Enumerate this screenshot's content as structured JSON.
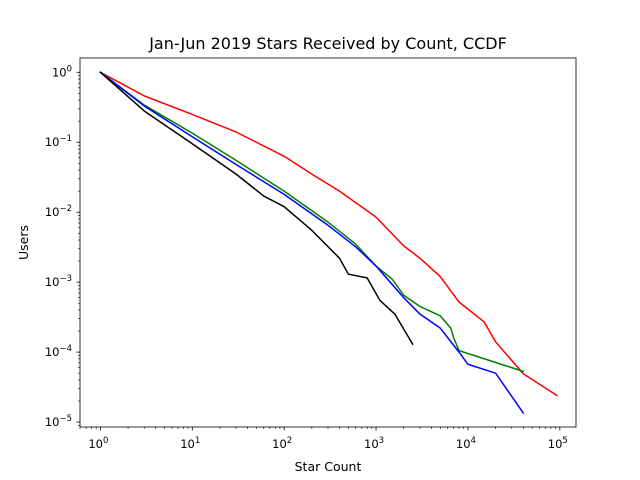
{
  "chart_data": {
    "type": "line",
    "title": "Jan-Jun 2019 Stars Received by Count, CCDF",
    "xlabel": "Star Count",
    "ylabel": "Users",
    "xscale": "log",
    "yscale": "log",
    "xlim": [
      0.6,
      150000
    ],
    "ylim": [
      8.5e-06,
      1.6
    ],
    "grid": false,
    "x_ticks": [
      {
        "base": "10",
        "exp": "0"
      },
      {
        "base": "10",
        "exp": "1"
      },
      {
        "base": "10",
        "exp": "2"
      },
      {
        "base": "10",
        "exp": "3"
      },
      {
        "base": "10",
        "exp": "4"
      },
      {
        "base": "10",
        "exp": "5"
      }
    ],
    "y_ticks": [
      {
        "base": "10",
        "exp": "−5"
      },
      {
        "base": "10",
        "exp": "−4"
      },
      {
        "base": "10",
        "exp": "−3"
      },
      {
        "base": "10",
        "exp": "−2"
      },
      {
        "base": "10",
        "exp": "−1"
      },
      {
        "base": "10",
        "exp": "0"
      }
    ],
    "series": [
      {
        "color": "#ff0000",
        "points": [
          [
            1,
            1.0
          ],
          [
            3,
            0.46
          ],
          [
            10,
            0.25
          ],
          [
            30,
            0.14
          ],
          [
            100,
            0.063
          ],
          [
            200,
            0.035
          ],
          [
            400,
            0.02
          ],
          [
            1000,
            0.0085
          ],
          [
            2000,
            0.0033
          ],
          [
            3000,
            0.0022
          ],
          [
            5000,
            0.0012
          ],
          [
            8000,
            0.00052
          ],
          [
            15000,
            0.00027
          ],
          [
            20000,
            0.00014
          ],
          [
            40000,
            4.9e-05
          ],
          [
            93000,
            2.4e-05
          ]
        ]
      },
      {
        "color": "#008000",
        "points": [
          [
            1,
            1.0
          ],
          [
            3,
            0.34
          ],
          [
            10,
            0.135
          ],
          [
            30,
            0.055
          ],
          [
            100,
            0.02
          ],
          [
            300,
            0.0072
          ],
          [
            600,
            0.0035
          ],
          [
            1000,
            0.0017
          ],
          [
            1500,
            0.0011
          ],
          [
            2000,
            0.00065
          ],
          [
            3000,
            0.00045
          ],
          [
            5000,
            0.00033
          ],
          [
            6500,
            0.00022
          ],
          [
            7000,
            0.00016
          ],
          [
            8000,
            0.000105
          ],
          [
            40000,
            5.3e-05
          ]
        ]
      },
      {
        "color": "#0000ff",
        "points": [
          [
            1,
            1.0
          ],
          [
            3,
            0.33
          ],
          [
            10,
            0.12
          ],
          [
            30,
            0.048
          ],
          [
            100,
            0.018
          ],
          [
            300,
            0.0065
          ],
          [
            600,
            0.0032
          ],
          [
            1000,
            0.0017
          ],
          [
            2000,
            0.0006
          ],
          [
            3000,
            0.00035
          ],
          [
            5000,
            0.00022
          ],
          [
            8000,
            0.0001
          ],
          [
            10000,
            6.7e-05
          ],
          [
            20000,
            5e-05
          ],
          [
            40000,
            1.35e-05
          ]
        ]
      },
      {
        "color": "#000000",
        "points": [
          [
            1,
            1.0
          ],
          [
            3,
            0.28
          ],
          [
            10,
            0.095
          ],
          [
            30,
            0.035
          ],
          [
            60,
            0.017
          ],
          [
            100,
            0.012
          ],
          [
            200,
            0.0055
          ],
          [
            400,
            0.0022
          ],
          [
            500,
            0.0013
          ],
          [
            800,
            0.00115
          ],
          [
            1100,
            0.00055
          ],
          [
            1600,
            0.00035
          ],
          [
            2500,
            0.00013
          ]
        ]
      }
    ]
  }
}
